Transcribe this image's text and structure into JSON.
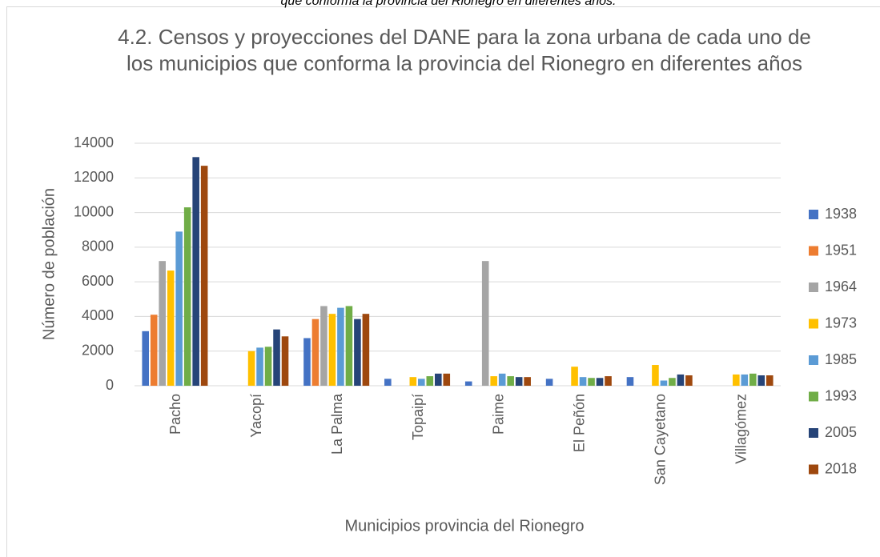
{
  "caption": "que conforma la provincia del Rionegro en diferentes años.",
  "chart_data": {
    "type": "bar",
    "title": "4.2. Censos y proyecciones del DANE para la zona urbana de cada uno de los municipios que conforma la provincia del Rionegro en diferentes años",
    "x_label": "Municipios provincia del Rionegro",
    "y_label": "Número de población",
    "categories": [
      "Pacho",
      "Yacopí",
      "La Palma",
      "Topaipí",
      "Paime",
      "El Peñón",
      "San Cayetano",
      "Villagómez"
    ],
    "series": [
      {
        "name": "1938",
        "color": "#4472c4",
        "values": [
          3150,
          null,
          2750,
          400,
          250,
          400,
          500,
          null
        ]
      },
      {
        "name": "1951",
        "color": "#ed7d31",
        "values": [
          4100,
          null,
          3850,
          null,
          null,
          null,
          null,
          null
        ]
      },
      {
        "name": "1964",
        "color": "#a5a5a5",
        "values": [
          7200,
          null,
          4600,
          null,
          7200,
          null,
          null,
          null
        ]
      },
      {
        "name": "1973",
        "color": "#ffc000",
        "values": [
          6650,
          2000,
          4150,
          500,
          550,
          1100,
          1200,
          650
        ]
      },
      {
        "name": "1985",
        "color": "#5b9bd5",
        "values": [
          8900,
          2200,
          4500,
          400,
          700,
          500,
          300,
          650
        ]
      },
      {
        "name": "1993",
        "color": "#70ad47",
        "values": [
          10300,
          2250,
          4600,
          550,
          550,
          450,
          450,
          700
        ]
      },
      {
        "name": "2005",
        "color": "#264478",
        "values": [
          13200,
          3250,
          3850,
          700,
          500,
          450,
          650,
          600
        ]
      },
      {
        "name": "2018",
        "color": "#9e480e",
        "values": [
          12700,
          2850,
          4150,
          700,
          500,
          550,
          600,
          600
        ]
      }
    ],
    "ylim": [
      0,
      14000
    ],
    "yticks": [
      0,
      2000,
      4000,
      6000,
      8000,
      10000,
      12000,
      14000
    ],
    "grid": true,
    "legend": "right"
  }
}
